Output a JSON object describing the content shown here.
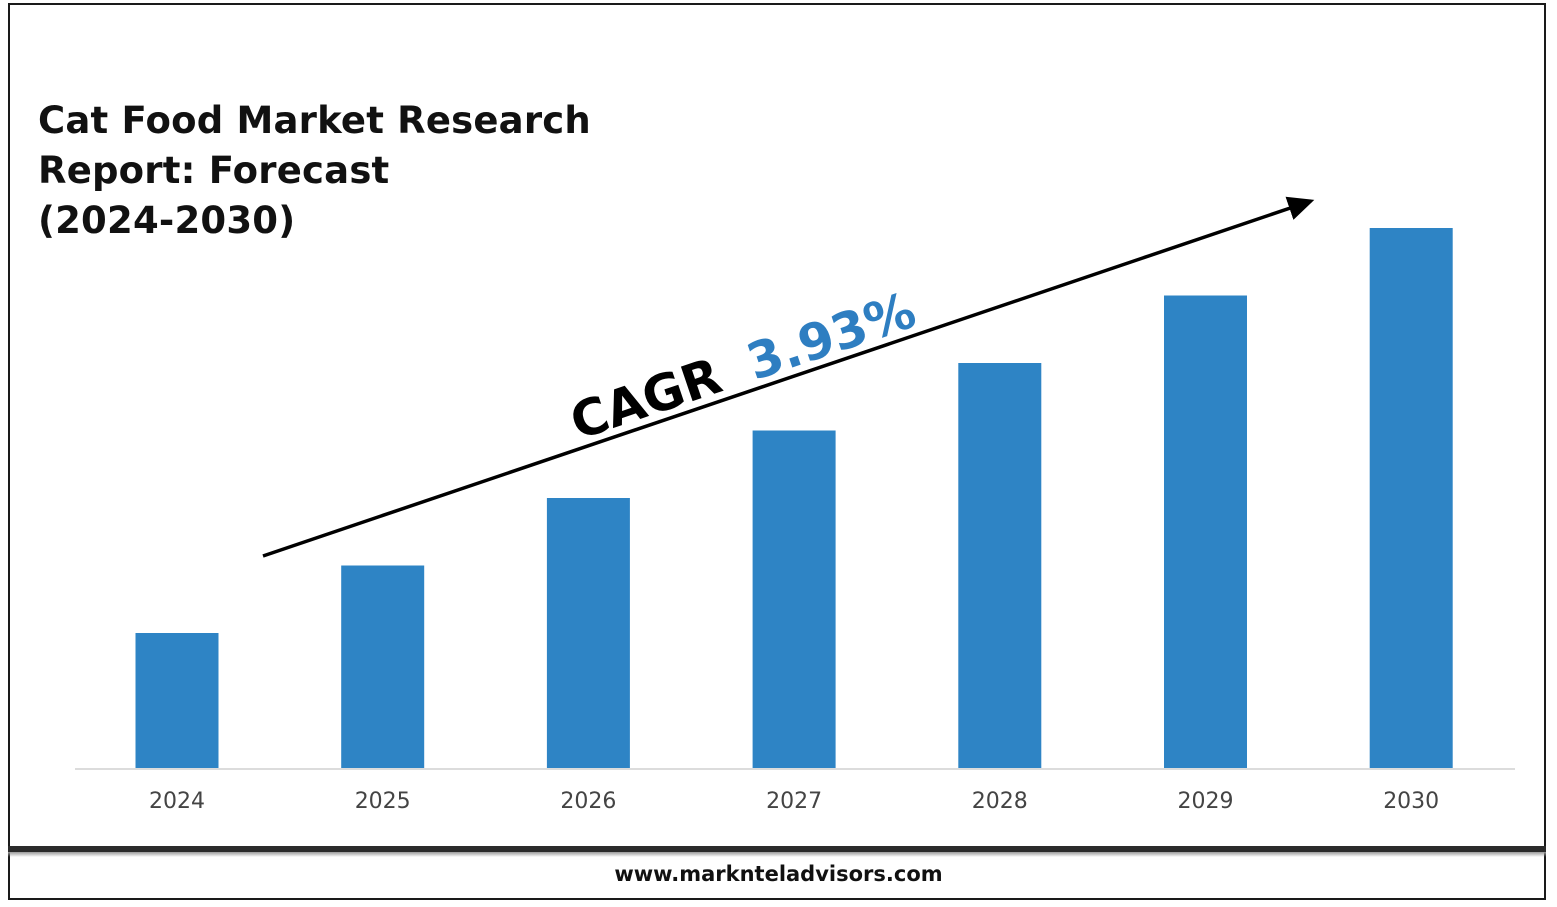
{
  "title_lines": [
    "Cat Food Market Research",
    "Report: Forecast",
    "(2024-2030)"
  ],
  "cagr": {
    "label": "CAGR",
    "value": "3.93%",
    "label_color": "#000000",
    "value_color": "#2E7EC1"
  },
  "footer": {
    "url": "www.marknteladvisors.com"
  },
  "colors": {
    "bar": "#2E84C5",
    "axis": "#d0d0d0",
    "tick_text": "#444444",
    "arrow": "#000000"
  },
  "chart_data": {
    "type": "bar",
    "categories": [
      "2024",
      "2025",
      "2026",
      "2027",
      "2028",
      "2029",
      "2030"
    ],
    "values": [
      2,
      3,
      4,
      5,
      6,
      7,
      8
    ],
    "value_scale": "relative (no value axis shown)",
    "ylim": [
      0,
      8
    ],
    "title": "Cat Food Market Research Report: Forecast (2024-2030)",
    "xlabel": "",
    "ylabel": "",
    "grid": false,
    "legend": "none",
    "annotation": "CAGR 3.93%"
  }
}
